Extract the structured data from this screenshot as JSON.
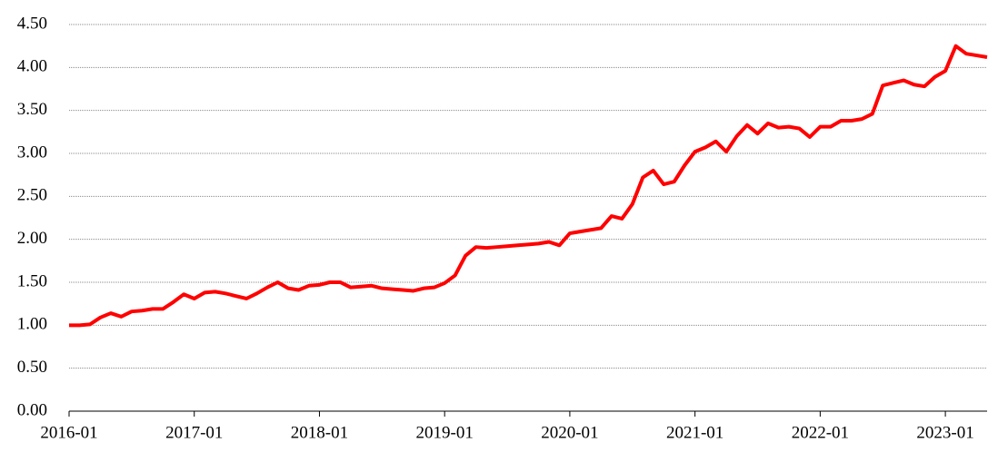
{
  "chart_data": {
    "type": "line",
    "categories": [
      "2016-01",
      null,
      null,
      null,
      null,
      null,
      null,
      null,
      null,
      null,
      null,
      null,
      "2017-01",
      null,
      null,
      null,
      null,
      null,
      null,
      null,
      null,
      null,
      null,
      null,
      "2018-01",
      null,
      null,
      null,
      null,
      null,
      null,
      null,
      null,
      null,
      null,
      null,
      "2019-01",
      null,
      null,
      null,
      null,
      null,
      null,
      null,
      null,
      null,
      null,
      null,
      "2020-01",
      null,
      null,
      null,
      null,
      null,
      null,
      null,
      null,
      null,
      null,
      null,
      "2021-01",
      null,
      null,
      null,
      null,
      null,
      null,
      null,
      null,
      null,
      null,
      null,
      "2022-01",
      null,
      null,
      null,
      null,
      null,
      null,
      null,
      null,
      null,
      null,
      null,
      "2023-01",
      null,
      null,
      null,
      null
    ],
    "series": [
      {
        "color": "#ff0000",
        "values": [
          1.0,
          1.0,
          1.01,
          1.09,
          1.14,
          1.1,
          1.16,
          1.17,
          1.19,
          1.19,
          1.27,
          1.36,
          1.31,
          1.38,
          1.39,
          1.37,
          1.34,
          1.31,
          1.37,
          1.44,
          1.5,
          1.43,
          1.41,
          1.46,
          1.47,
          1.5,
          1.5,
          1.44,
          1.45,
          1.46,
          1.43,
          1.42,
          1.41,
          1.4,
          1.43,
          1.44,
          1.49,
          1.58,
          1.81,
          1.91,
          1.9,
          1.91,
          1.92,
          1.93,
          1.94,
          1.95,
          1.97,
          1.93,
          2.07,
          2.09,
          2.11,
          2.13,
          2.27,
          2.24,
          2.41,
          2.72,
          2.8,
          2.64,
          2.67,
          2.86,
          3.02,
          3.07,
          3.14,
          3.02,
          3.2,
          3.33,
          3.23,
          3.35,
          3.3,
          3.31,
          3.29,
          3.19,
          3.31,
          3.31,
          3.38,
          3.38,
          3.4,
          3.46,
          3.79,
          3.82,
          3.85,
          3.8,
          3.78,
          3.89,
          3.96,
          4.25,
          4.16,
          4.14,
          4.12
        ]
      }
    ],
    "ylim": [
      0,
      4.5
    ],
    "yticks": [
      {
        "value": 0,
        "label": "0.00"
      },
      {
        "value": 0.5,
        "label": "0.50"
      },
      {
        "value": 1,
        "label": "1.00"
      },
      {
        "value": 1.5,
        "label": "1.50"
      },
      {
        "value": 2,
        "label": "2.00"
      },
      {
        "value": 2.5,
        "label": "2.50"
      },
      {
        "value": 3,
        "label": "3.00"
      },
      {
        "value": 3.5,
        "label": "3.50"
      },
      {
        "value": 4,
        "label": "4.00"
      },
      {
        "value": 4.5,
        "label": "4.50"
      }
    ],
    "grid": true
  }
}
